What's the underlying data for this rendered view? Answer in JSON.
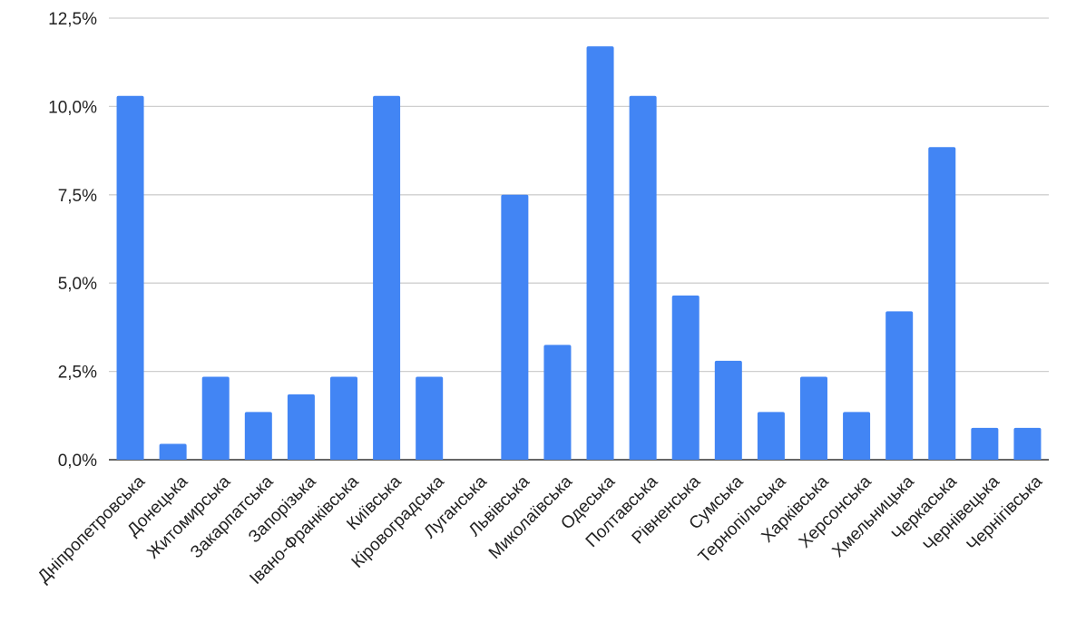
{
  "chart_data": {
    "type": "bar",
    "title": "",
    "xlabel": "",
    "ylabel": "",
    "ylim": [
      0,
      12.5
    ],
    "grid": true,
    "legend": "none",
    "bar_color": "#4285f4",
    "y_ticks": [
      {
        "value": 0,
        "label": "0,0%"
      },
      {
        "value": 2.5,
        "label": "2,5%"
      },
      {
        "value": 5,
        "label": "5,0%"
      },
      {
        "value": 7.5,
        "label": "7,5%"
      },
      {
        "value": 10,
        "label": "10,0%"
      },
      {
        "value": 12.5,
        "label": "12,5%"
      }
    ],
    "categories": [
      "Дніпропетровська",
      "Донецька",
      "Житомирська",
      "Закарпатська",
      "Запорізька",
      "Івано-Франківська",
      "Київська",
      "Кіровоградська",
      "Луганська",
      "Львівська",
      "Миколаївська",
      "Одеська",
      "Полтавська",
      "Рівненська",
      "Сумська",
      "Тернопільська",
      "Харківська",
      "Херсонська",
      "Хмельницька",
      "Черкаська",
      "Чернівецька",
      "Чернігівська"
    ],
    "values": [
      10.3,
      0.45,
      2.35,
      1.35,
      1.85,
      2.35,
      10.3,
      2.35,
      0,
      7.5,
      3.25,
      11.7,
      10.3,
      4.65,
      2.8,
      1.35,
      2.35,
      1.35,
      4.2,
      8.85,
      0.9,
      0.9
    ]
  }
}
